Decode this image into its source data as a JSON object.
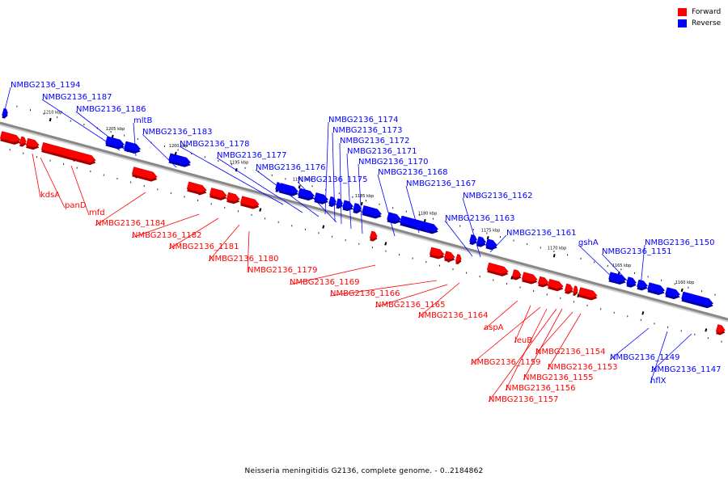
{
  "caption": "Neisseria meningitidis G2136, complete genome. - 0..2184862",
  "legend": [
    {
      "label": "Forward",
      "color": "#ff0000"
    },
    {
      "label": "Reverse",
      "color": "#0000ff"
    }
  ],
  "colors": {
    "forward": "#ff0000",
    "reverse": "#0000ff",
    "axis": "#888888"
  },
  "ticks": [
    {
      "label": "1210 kbp"
    },
    {
      "label": "1205 kbp"
    },
    {
      "label": "1200 kbp"
    },
    {
      "label": "1195 kbp"
    },
    {
      "label": "1190 kbp"
    },
    {
      "label": "1185 kbp"
    },
    {
      "label": "1180 kbp"
    },
    {
      "label": "1175 kbp"
    },
    {
      "label": "1170 kbp"
    },
    {
      "label": "1165 kbp"
    },
    {
      "label": "1160 kbp"
    }
  ],
  "genes_reverse": [
    {
      "label": "NMBG2136_1194"
    },
    {
      "label": "NMBG2136_1187"
    },
    {
      "label": "NMBG2136_1186"
    },
    {
      "label": "mltB"
    },
    {
      "label": "NMBG2136_1183"
    },
    {
      "label": "NMBG2136_1178"
    },
    {
      "label": "NMBG2136_1177"
    },
    {
      "label": "NMBG2136_1176"
    },
    {
      "label": "NMBG2136_1175"
    },
    {
      "label": "NMBG2136_1174"
    },
    {
      "label": "NMBG2136_1173"
    },
    {
      "label": "NMBG2136_1172"
    },
    {
      "label": "NMBG2136_1171"
    },
    {
      "label": "NMBG2136_1170"
    },
    {
      "label": "NMBG2136_1168"
    },
    {
      "label": "NMBG2136_1167"
    },
    {
      "label": "NMBG2136_1162"
    },
    {
      "label": "NMBG2136_1163"
    },
    {
      "label": "NMBG2136_1161"
    },
    {
      "label": "gshA"
    },
    {
      "label": "NMBG2136_1151"
    },
    {
      "label": "NMBG2136_1150"
    },
    {
      "label": "NMBG2136_1149"
    },
    {
      "label": "NMBG2136_1147"
    },
    {
      "label": "hflX"
    }
  ],
  "genes_forward": [
    {
      "label": "kdsA"
    },
    {
      "label": "panD"
    },
    {
      "label": "mfd"
    },
    {
      "label": "NMBG2136_1184"
    },
    {
      "label": "NMBG2136_1182"
    },
    {
      "label": "NMBG2136_1181"
    },
    {
      "label": "NMBG2136_1180"
    },
    {
      "label": "NMBG2136_1179"
    },
    {
      "label": "NMBG2136_1169"
    },
    {
      "label": "NMBG2136_1166"
    },
    {
      "label": "NMBG2136_1165"
    },
    {
      "label": "NMBG2136_1164"
    },
    {
      "label": "aspA"
    },
    {
      "label": "leuB"
    },
    {
      "label": "NMBG2136_1159"
    },
    {
      "label": "NMBG2136_1154"
    },
    {
      "label": "NMBG2136_1153"
    },
    {
      "label": "NMBG2136_1155"
    },
    {
      "label": "NMBG2136_1156"
    },
    {
      "label": "NMBG2136_1157"
    }
  ]
}
